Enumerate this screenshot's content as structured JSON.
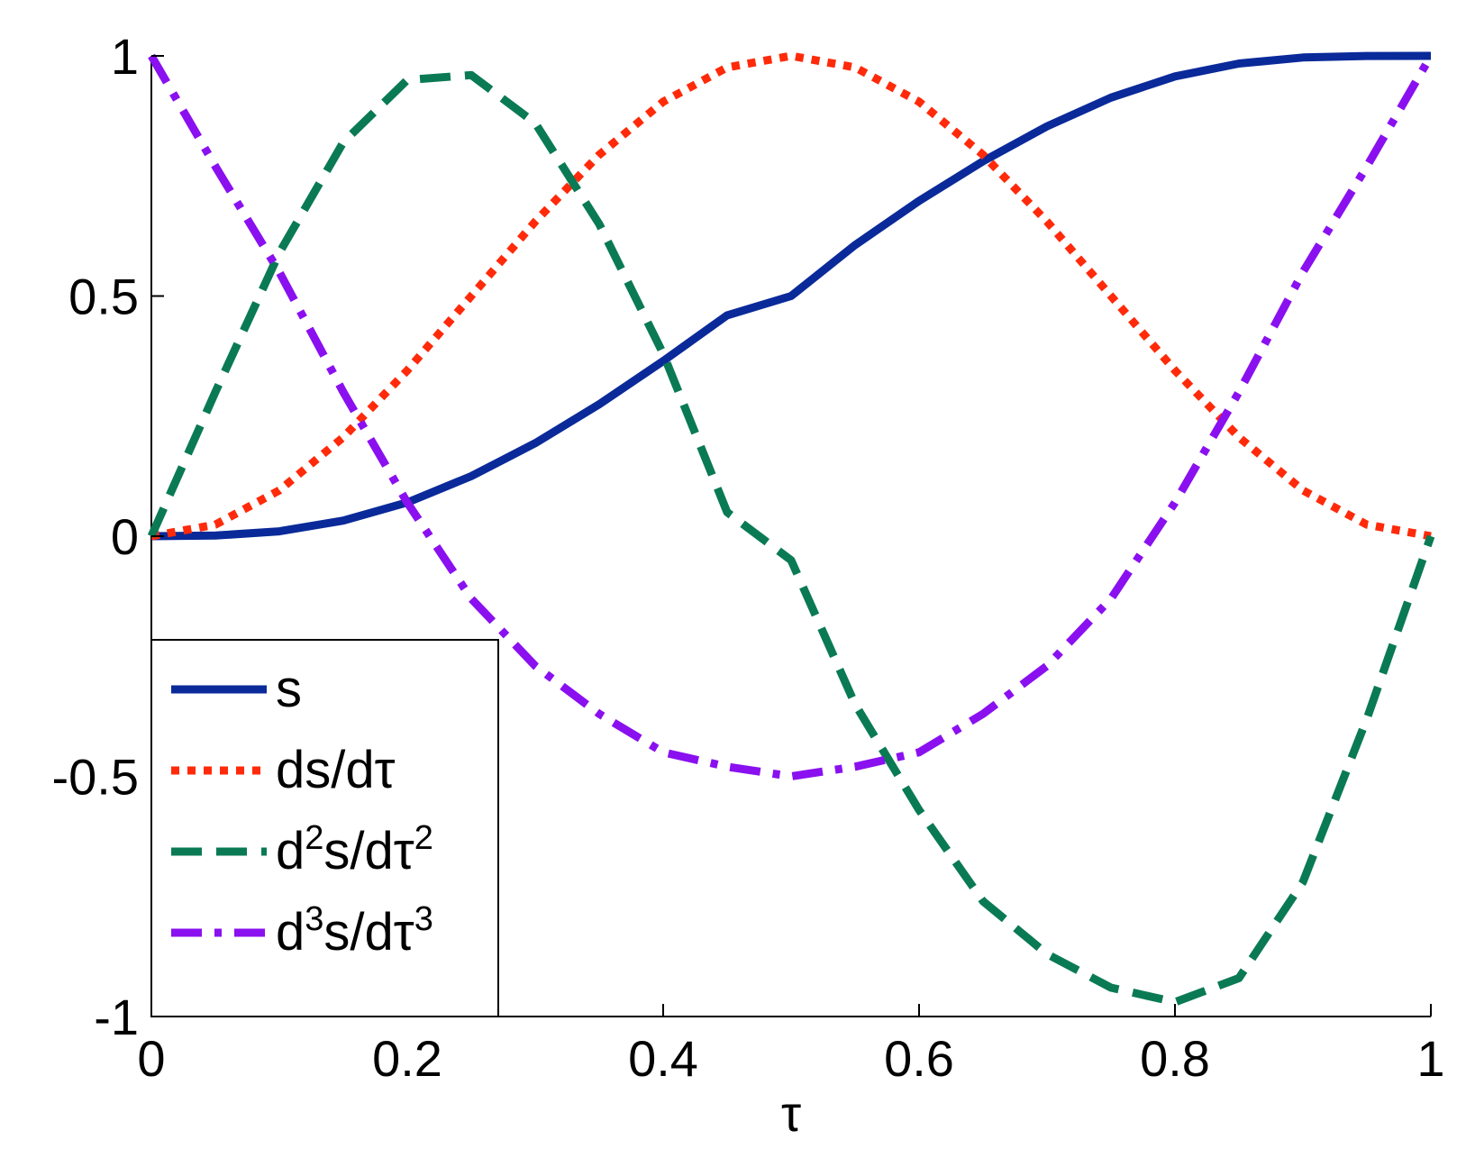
{
  "chart_data": {
    "type": "line",
    "title": "",
    "xlabel": "τ",
    "ylabel": "",
    "xlim": [
      0,
      1
    ],
    "ylim": [
      -1,
      1
    ],
    "grid": false,
    "legend_position": "bottom-left",
    "x_ticks": [
      0,
      0.2,
      0.4,
      0.6,
      0.8,
      1
    ],
    "x_tick_labels": [
      "0",
      "0.2",
      "0.4",
      "0.6",
      "0.8",
      "1"
    ],
    "y_ticks": [
      -1,
      -0.5,
      0,
      0.5,
      1
    ],
    "y_tick_labels": [
      "-1",
      "-0.5",
      "0",
      "0.5",
      "1"
    ],
    "x": [
      0,
      0.05,
      0.1,
      0.15,
      0.2,
      0.25,
      0.3,
      0.35,
      0.4,
      0.45,
      0.5,
      0.55,
      0.6,
      0.65,
      0.7,
      0.75,
      0.8,
      0.85,
      0.9,
      0.95,
      1.0
    ],
    "series": [
      {
        "name": "s",
        "label_base": "s",
        "color": "#0a2a9a",
        "style": "solid",
        "values": [
          0,
          0.0013,
          0.0102,
          0.0324,
          0.0702,
          0.125,
          0.1936,
          0.2746,
          0.3647,
          0.4598,
          0.5,
          0.6062,
          0.6981,
          0.7806,
          0.8532,
          0.9131,
          0.9572,
          0.984,
          0.9966,
          0.9998,
          1.0
        ]
      },
      {
        "name": "ds/dτ",
        "label_base": "ds/dτ",
        "color": "#ff2a0a",
        "style": "dotted",
        "values": [
          0,
          0.024,
          0.0955,
          0.206,
          0.345,
          0.5,
          0.655,
          0.794,
          0.9045,
          0.976,
          1.0,
          0.976,
          0.9045,
          0.794,
          0.655,
          0.5,
          0.345,
          0.206,
          0.0955,
          0.024,
          0
        ]
      },
      {
        "name": "d²s/dτ²",
        "label_base": "d",
        "label_sup1": "2",
        "label_mid": "s/dτ",
        "label_sup2": "2",
        "color": "#0a7a55",
        "style": "dashed",
        "values": [
          0,
          0.3,
          0.59,
          0.82,
          0.95,
          0.96,
          0.86,
          0.65,
          0.38,
          0.05,
          -0.05,
          -0.35,
          -0.57,
          -0.76,
          -0.87,
          -0.94,
          -0.97,
          -0.92,
          -0.72,
          -0.38,
          0
        ]
      },
      {
        "name": "d³s/dτ³",
        "label_base": "d",
        "label_sup1": "3",
        "label_mid": "s/dτ",
        "label_sup2": "3",
        "color": "#8a10f0",
        "style": "dashdot",
        "values": [
          1.0,
          0.77,
          0.55,
          0.3,
          0.07,
          -0.13,
          -0.27,
          -0.37,
          -0.45,
          -0.48,
          -0.5,
          -0.48,
          -0.45,
          -0.37,
          -0.27,
          -0.13,
          0.07,
          0.3,
          0.55,
          0.77,
          1.0
        ]
      }
    ]
  }
}
